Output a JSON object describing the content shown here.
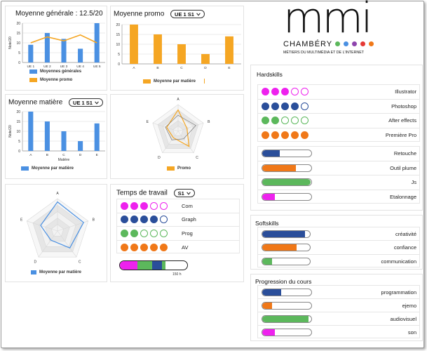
{
  "colors": {
    "blue": "#4a90e2",
    "orange": "#f5a623",
    "magenta": "#ee22ee",
    "navy": "#2a4e9a",
    "green": "#5cb85c",
    "darkorange": "#f07818"
  },
  "moyenne_generale": {
    "title": "Moyenne générale : 12.5/20",
    "ylabel": "Note/20",
    "legend_series": "Moyennes générales",
    "legend_promo": "Moyenne promo"
  },
  "moyenne_promo": {
    "title": "Moyenne promo",
    "dropdown": "UE 1 S1",
    "legend": "Moyenne par matière"
  },
  "moyenne_matiere": {
    "title": "Moyenne matière",
    "dropdown": "UE 1 S1",
    "ylabel": "Note/20",
    "xlabel": "Matière",
    "legend": "Moyenne par matière"
  },
  "radar_promo": {
    "legend": "Promo"
  },
  "radar_student": {
    "legend": "Moyenne par matière"
  },
  "temps_travail": {
    "title": "Temps de travail",
    "dropdown": "S1",
    "rows": [
      {
        "label": "Com",
        "color": "#ee22ee",
        "filled": 3,
        "total": 5
      },
      {
        "label": "Graph",
        "color": "#2a4e9a",
        "filled": 4,
        "total": 5
      },
      {
        "label": "Prog",
        "color": "#5cb85c",
        "filled": 2,
        "total": 5
      },
      {
        "label": "AV",
        "color": "#f07818",
        "filled": 5,
        "total": 5
      }
    ],
    "total_label": "150 h",
    "stack": [
      {
        "color": "#ee22ee",
        "fraction": 0.26
      },
      {
        "color": "#5cb85c",
        "fraction": 0.22
      },
      {
        "color": "#2a4e9a",
        "fraction": 0.14
      },
      {
        "color": "#5cb85c",
        "fraction": 0.06
      }
    ]
  },
  "logo": {
    "text": "mmi",
    "city": "CHAMBÉRY",
    "tagline": "MÉTIERS DU MULTIMÉDIA ET DE L'INTERNET",
    "dot_colors": [
      "#5cb85c",
      "#4a90e2",
      "#8e44ad",
      "#e53935",
      "#f07818"
    ]
  },
  "hardskills": {
    "title": "Hardskills",
    "dot_skills": [
      {
        "label": "Illustrator",
        "color": "#ee22ee",
        "filled": 3,
        "total": 5
      },
      {
        "label": "Photoshop",
        "color": "#2a4e9a",
        "filled": 4,
        "total": 5
      },
      {
        "label": "After effects",
        "color": "#5cb85c",
        "filled": 2,
        "total": 5
      },
      {
        "label": "Première Pro",
        "color": "#f07818",
        "filled": 5,
        "total": 5
      }
    ],
    "bar_skills": [
      {
        "label": "Retouche",
        "color": "#2a4e9a",
        "level": 0.35
      },
      {
        "label": "Outil plume",
        "color": "#f07818",
        "level": 0.68
      },
      {
        "label": "Js",
        "color": "#5cb85c",
        "level": 0.98
      },
      {
        "label": "Etalonnage",
        "color": "#ee22ee",
        "level": 0.25
      }
    ]
  },
  "softskills": {
    "title": "Softskills",
    "skills": [
      {
        "label": "créativité",
        "color": "#2a4e9a",
        "level": 0.9
      },
      {
        "label": "confiance",
        "color": "#f07818",
        "level": 0.72
      },
      {
        "label": "communication",
        "color": "#5cb85c",
        "level": 0.2
      }
    ]
  },
  "progression": {
    "title": "Progression du cours",
    "skills": [
      {
        "label": "programmation",
        "color": "#2a4e9a",
        "level": 0.38
      },
      {
        "label": "ejemo",
        "color": "#f07818",
        "level": 0.2
      },
      {
        "label": "audiovisuel",
        "color": "#5cb85c",
        "level": 0.94
      },
      {
        "label": "son",
        "color": "#ee22ee",
        "level": 0.25
      }
    ]
  },
  "chart_data": [
    {
      "type": "bar",
      "title": "Moyenne générale : 12.5/20",
      "categories": [
        "UE 1",
        "UE 2",
        "UE 3",
        "UE 4",
        "UE 5"
      ],
      "ylabel": "Note/20",
      "ylim": [
        0,
        20
      ],
      "yticks": [
        0,
        5,
        10,
        15,
        20
      ],
      "series": [
        {
          "name": "Moyennes générales",
          "type": "bar",
          "values": [
            9,
            15,
            12,
            7,
            20
          ]
        },
        {
          "name": "Moyenne promo",
          "type": "line",
          "values": [
            10,
            13,
            11,
            14,
            10
          ]
        }
      ],
      "legend": "bottom",
      "grid": true
    },
    {
      "type": "bar",
      "title": "Moyenne promo",
      "categories": [
        "A",
        "B",
        "C",
        "D",
        "E"
      ],
      "ylim": [
        0,
        20
      ],
      "yticks": [
        0,
        5,
        10,
        15,
        20
      ],
      "series": [
        {
          "name": "Moyenne par matière",
          "values": [
            20,
            15,
            10,
            5,
            14
          ]
        }
      ],
      "legend": "bottom",
      "grid": true
    },
    {
      "type": "bar",
      "title": "Moyenne matière",
      "categories": [
        "A",
        "B",
        "C",
        "D",
        "E"
      ],
      "xlabel": "Matière",
      "ylabel": "Note/20",
      "ylim": [
        0,
        20
      ],
      "yticks": [
        0,
        5,
        10,
        15,
        20
      ],
      "series": [
        {
          "name": "Moyenne par matière",
          "values": [
            20,
            15,
            10,
            5,
            14
          ]
        }
      ],
      "legend": "bottom",
      "grid": true
    },
    {
      "type": "radar",
      "categories": [
        "A",
        "B",
        "C",
        "D",
        "E"
      ],
      "series": [
        {
          "name": "Promo",
          "values": [
            0.8,
            0.35,
            0.7,
            0.3,
            0.45
          ]
        },
        {
          "name": "",
          "values": [
            0.6,
            0.7,
            0.35,
            0.4,
            0.5
          ]
        }
      ],
      "legend": "bottom"
    },
    {
      "type": "radar",
      "categories": [
        "A",
        "B",
        "C",
        "D",
        "E"
      ],
      "series": [
        {
          "name": "Moyenne par matière",
          "values": [
            0.9,
            0.85,
            0.65,
            0.35,
            0.55
          ]
        }
      ],
      "legend": "bottom"
    }
  ]
}
